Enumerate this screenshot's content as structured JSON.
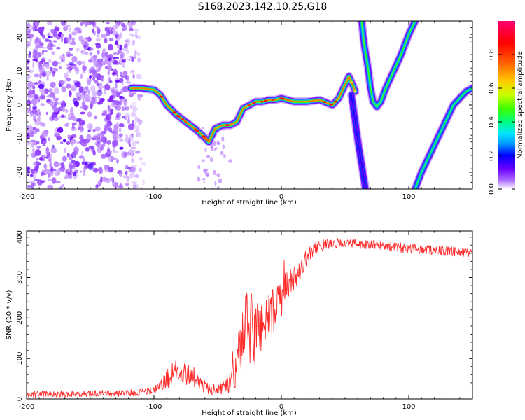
{
  "title": "S168.2023.142.10.25.G18",
  "chart_data": [
    {
      "type": "heatmap",
      "xlabel": "Height of straight line (km)",
      "ylabel": "Frequency (Hz)",
      "xlim": [
        -200,
        150
      ],
      "ylim": [
        -25,
        25
      ],
      "xticks": [
        -200,
        -100,
        0,
        100
      ],
      "yticks": [
        -20,
        -10,
        0,
        10,
        20
      ],
      "colorbar": {
        "label": "Normalized spectral amplitude",
        "range": [
          0,
          1
        ],
        "ticks": [
          "0.0",
          "0.2",
          "0.4",
          "0.6",
          "0.8"
        ],
        "colormap": [
          "#ffffff",
          "#b070ff",
          "#6a00ff",
          "#0000ff",
          "#0099ff",
          "#00e5ff",
          "#00ff80",
          "#40ff00",
          "#c8ff00",
          "#ffcc00",
          "#ff6000",
          "#ff0000",
          "#ff0070"
        ],
        "colormap_stops": [
          0.0,
          0.05,
          0.12,
          0.2,
          0.27,
          0.33,
          0.4,
          0.48,
          0.56,
          0.64,
          0.75,
          0.87,
          1.0
        ]
      },
      "ridges": [
        {
          "x": [
            -118,
            -110,
            -100,
            -95,
            -90,
            -82,
            -75,
            -68,
            -62,
            -57,
            -52,
            -46,
            -40,
            -35,
            -30,
            -25,
            -20,
            -15,
            -10,
            -5,
            0,
            5,
            10,
            20,
            30,
            40,
            45,
            50,
            53,
            56,
            58
          ],
          "y": [
            5,
            5,
            4.5,
            3,
            0,
            -3,
            -5,
            -7,
            -9,
            -11,
            -7,
            -6,
            -6,
            -5,
            -1,
            0,
            1,
            1,
            1.5,
            1.5,
            2,
            1.5,
            1,
            1,
            1.5,
            0,
            2,
            6,
            8.5,
            6,
            4
          ],
          "intensity": 0.85
        },
        {
          "x": [
            55,
            58,
            61,
            64,
            66
          ],
          "y": [
            3,
            -5,
            -13,
            -20,
            -25
          ],
          "intensity": 0.2
        },
        {
          "x": [
            63,
            65,
            68,
            70,
            72,
            75,
            78,
            82,
            88,
            94,
            100,
            105
          ],
          "y": [
            25,
            18,
            11,
            5,
            1,
            -0.5,
            1,
            5,
            10,
            15,
            21,
            25
          ],
          "intensity": 0.55
        },
        {
          "x": [
            105,
            110,
            115,
            120,
            125,
            130,
            135,
            140,
            145,
            150
          ],
          "y": [
            -25,
            -20,
            -16,
            -12,
            -8,
            -4,
            0,
            2,
            4,
            5
          ],
          "intensity": 0.5
        }
      ],
      "noise_region_x": [
        -200,
        -105
      ]
    },
    {
      "type": "line",
      "xlabel": "Height of straight line (km)",
      "ylabel": "SNR (10 * v/v)",
      "xlim": [
        -200,
        150
      ],
      "ylim": [
        0,
        415
      ],
      "xticks": [
        -200,
        -100,
        0,
        100
      ],
      "yticks": [
        0,
        100,
        200,
        300,
        400
      ],
      "series": [
        {
          "color": "#ff2a2a",
          "envelope": {
            "x": [
              -200,
              -120,
              -100,
              -95,
              -90,
              -85,
              -80,
              -75,
              -70,
              -65,
              -60,
              -55,
              -50,
              -45,
              -40,
              -35,
              -30,
              -25,
              -20,
              -15,
              -10,
              -5,
              0,
              5,
              10,
              15,
              20,
              25,
              30,
              40,
              50,
              60,
              70,
              80,
              90,
              100,
              110,
              120,
              130,
              140,
              150
            ],
            "mean": [
              12,
              14,
              20,
              30,
              50,
              60,
              70,
              65,
              60,
              40,
              30,
              25,
              25,
              28,
              40,
              80,
              150,
              180,
              160,
              190,
              200,
              220,
              250,
              280,
              300,
              320,
              350,
              370,
              380,
              385,
              385,
              383,
              380,
              378,
              375,
              372,
              370,
              368,
              365,
              362,
              360
            ],
            "spread": [
              8,
              8,
              10,
              15,
              25,
              30,
              35,
              30,
              25,
              20,
              15,
              15,
              15,
              18,
              30,
              60,
              90,
              100,
              90,
              80,
              70,
              60,
              50,
              40,
              30,
              25,
              20,
              18,
              15,
              12,
              12,
              12,
              12,
              12,
              12,
              12,
              12,
              12,
              12,
              12,
              12
            ]
          }
        }
      ]
    }
  ]
}
